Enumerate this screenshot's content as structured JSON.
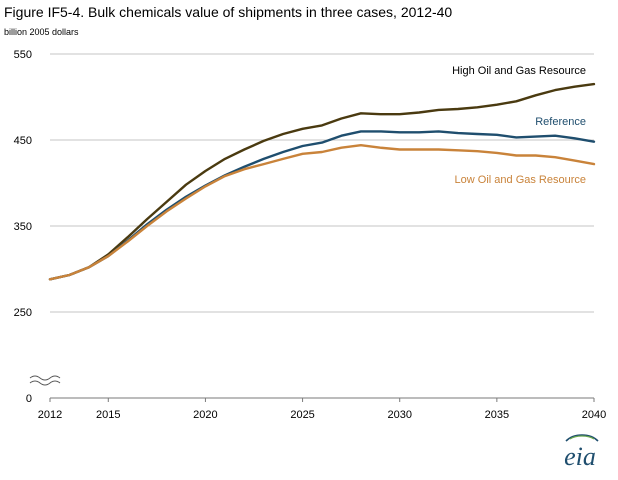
{
  "title": "Figure IF5-4. Bulk chemicals value of shipments in three cases, 2012-40",
  "units_label": "billion 2005 dollars",
  "logo_text": "eia",
  "colors": {
    "high": "#4a3a10",
    "reference": "#1f4e6e",
    "low": "#c9833a",
    "grid": "#b0b0b0",
    "axis": "#7a7a7a",
    "logo_blue": "#1f4e6e",
    "logo_green": "#6aa84f"
  },
  "chart_data": {
    "type": "line",
    "x": [
      2012,
      2013,
      2014,
      2015,
      2016,
      2017,
      2018,
      2019,
      2020,
      2021,
      2022,
      2023,
      2024,
      2025,
      2026,
      2027,
      2028,
      2029,
      2030,
      2031,
      2032,
      2033,
      2034,
      2035,
      2036,
      2037,
      2038,
      2039,
      2040
    ],
    "series": [
      {
        "name": "High Oil and Gas Resource",
        "color": "#4a3a10",
        "values": [
          288,
          293,
          302,
          317,
          337,
          358,
          378,
          398,
          414,
          428,
          439,
          449,
          457,
          463,
          467,
          475,
          481,
          480,
          480,
          482,
          485,
          486,
          488,
          491,
          495,
          502,
          508,
          512,
          515
        ]
      },
      {
        "name": "Reference",
        "color": "#1f4e6e",
        "values": [
          288,
          293,
          302,
          315,
          333,
          352,
          369,
          384,
          397,
          409,
          419,
          428,
          436,
          443,
          447,
          455,
          460,
          460,
          459,
          459,
          460,
          458,
          457,
          456,
          453,
          454,
          455,
          452,
          448
        ]
      },
      {
        "name": "Low Oil and Gas Resource",
        "color": "#c9833a",
        "values": [
          288,
          293,
          302,
          315,
          332,
          350,
          367,
          382,
          396,
          408,
          416,
          422,
          428,
          434,
          436,
          441,
          444,
          441,
          439,
          439,
          439,
          438,
          437,
          435,
          432,
          432,
          430,
          426,
          422
        ]
      }
    ],
    "title": "Figure IF5-4. Bulk chemicals value of shipments in three cases, 2012-40",
    "ylabel": "billion 2005 dollars",
    "xlabel": "",
    "xlim": [
      2012,
      2040
    ],
    "ylim": [
      0,
      550
    ],
    "x_ticks": [
      "2012",
      "2015",
      "2020",
      "2025",
      "2030",
      "2035",
      "2040"
    ],
    "y_ticks": [
      "0",
      "250",
      "350",
      "450",
      "550"
    ],
    "axis_break": true,
    "grid": true,
    "legend": "inline labels at right"
  }
}
